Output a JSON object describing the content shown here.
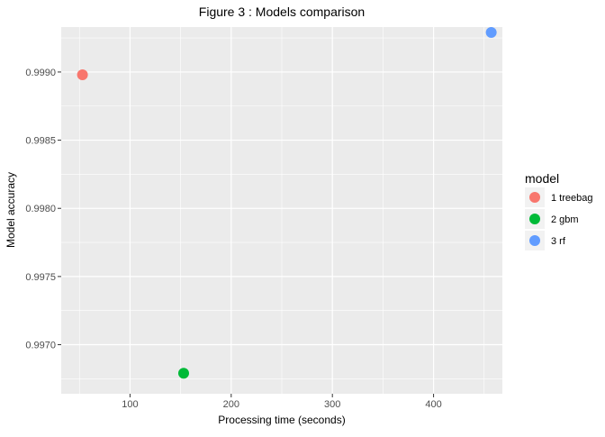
{
  "chart_data": {
    "type": "scatter",
    "title": "Figure 3 : Models comparison",
    "xlabel": "Processing time (seconds)",
    "ylabel": "Model accuracy",
    "xlim": [
      32,
      468
    ],
    "ylim": [
      0.99664,
      0.99933
    ],
    "xticks": [
      100,
      200,
      300,
      400
    ],
    "xtick_labels": [
      "100",
      "200",
      "300",
      "400"
    ],
    "yticks": [
      0.997,
      0.9975,
      0.998,
      0.9985,
      0.999
    ],
    "ytick_labels": [
      "0.9970",
      "0.9975",
      "0.9980",
      "0.9985",
      "0.9990"
    ],
    "grid": true,
    "legend": {
      "title": "model",
      "placement": "right",
      "entries": [
        "1 treebag",
        "2 gbm",
        "3 rf"
      ]
    },
    "series": [
      {
        "name": "1 treebag",
        "color": "#F8766D",
        "points": [
          {
            "x": 53,
            "y": 0.99898
          }
        ]
      },
      {
        "name": "2 gbm",
        "color": "#00BA38",
        "points": [
          {
            "x": 153,
            "y": 0.99679
          }
        ]
      },
      {
        "name": "3 rf",
        "color": "#619CFF",
        "points": [
          {
            "x": 457,
            "y": 0.99929
          }
        ]
      }
    ]
  }
}
